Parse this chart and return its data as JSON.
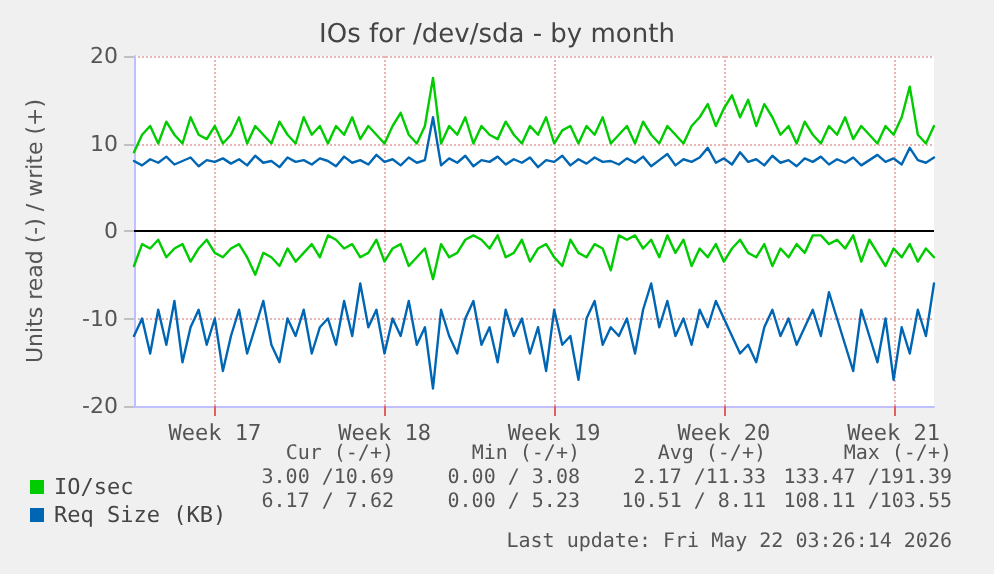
{
  "chart_data": {
    "type": "line",
    "title": "IOs for /dev/sda - by month",
    "ylabel": "Units read (-) / write (+)",
    "categories": [
      null,
      null,
      null,
      null,
      null,
      null,
      null,
      null,
      null,
      null,
      "Week 17",
      null,
      null,
      null,
      null,
      null,
      null,
      null,
      null,
      null,
      null,
      null,
      null,
      null,
      null,
      null,
      null,
      null,
      null,
      null,
      null,
      "Week 18",
      null,
      null,
      null,
      null,
      null,
      null,
      null,
      null,
      null,
      null,
      null,
      null,
      null,
      null,
      null,
      null,
      null,
      null,
      null,
      null,
      "Week 19",
      null,
      null,
      null,
      null,
      null,
      null,
      null,
      null,
      null,
      null,
      null,
      null,
      null,
      null,
      null,
      null,
      null,
      null,
      null,
      null,
      "Week 20",
      null,
      null,
      null,
      null,
      null,
      null,
      null,
      null,
      null,
      null,
      null,
      null,
      null,
      null,
      null,
      null,
      null,
      null,
      null,
      null,
      "Week 21",
      null,
      null,
      null,
      null,
      null
    ],
    "series": [
      {
        "name": "IO/sec",
        "color": "#00cc00",
        "values": [
          9,
          11,
          12,
          10,
          12.5,
          11,
          10,
          13,
          11,
          10.5,
          12,
          10,
          11,
          13,
          10,
          12,
          11,
          10,
          12.5,
          11,
          10,
          13,
          11,
          12,
          10,
          12,
          11,
          13,
          10.5,
          12,
          11,
          10,
          12,
          13.5,
          11,
          10,
          12,
          17.5,
          10,
          12,
          11,
          13,
          10,
          12,
          11,
          10.5,
          12.5,
          11,
          10,
          12,
          11,
          13,
          10,
          11.5,
          12,
          10,
          12,
          11,
          13,
          10,
          11,
          12,
          10,
          12.5,
          11,
          10,
          12,
          11,
          10,
          12,
          13,
          14.5,
          12,
          14,
          15.5,
          13,
          15,
          12,
          14.5,
          13,
          11,
          12,
          10,
          12.5,
          11,
          10,
          12,
          11,
          13,
          10.5,
          12,
          11,
          10,
          12,
          11,
          13,
          16.5,
          11,
          10,
          12
        ]
      },
      {
        "color": "#00cc00",
        "values": [
          -4,
          -1.5,
          -2,
          -1,
          -3,
          -2,
          -1.5,
          -3.5,
          -2,
          -1,
          -2.5,
          -3,
          -2,
          -1.5,
          -3,
          -5,
          -2.5,
          -3,
          -4,
          -2,
          -3.5,
          -2.5,
          -1.5,
          -3,
          -0.5,
          -1,
          -2,
          -1.5,
          -3,
          -2.5,
          -1,
          -3.5,
          -2,
          -1.5,
          -4,
          -3,
          -2,
          -5.5,
          -1.5,
          -3,
          -2.5,
          -1,
          -0.5,
          -1,
          -2,
          -0.5,
          -3,
          -2.5,
          -1,
          -3.5,
          -2,
          -1.5,
          -3,
          -4,
          -1,
          -2.5,
          -3,
          -1.5,
          -2,
          -4.5,
          -0.5,
          -1,
          -0.5,
          -2,
          -1,
          -3,
          -0.5,
          -2.5,
          -1,
          -4,
          -2,
          -3,
          -1.5,
          -3.5,
          -2,
          -1,
          -2.5,
          -3,
          -1.5,
          -4,
          -2,
          -3,
          -1.5,
          -2.5,
          -0.5,
          -0.5,
          -1.5,
          -1,
          -2,
          -0.5,
          -3.5,
          -1,
          -2.5,
          -4,
          -2,
          -3,
          -1.5,
          -3.5,
          -2,
          -3
        ]
      },
      {
        "name": "Req Size (KB)",
        "color": "#0066b3",
        "values": [
          8,
          7.5,
          8.2,
          7.8,
          8.5,
          7.6,
          8,
          8.4,
          7.4,
          8.1,
          7.9,
          8.3,
          7.7,
          8.2,
          7.5,
          8.6,
          7.8,
          8,
          7.3,
          8.4,
          7.9,
          8.1,
          7.6,
          8.3,
          8,
          7.4,
          8.5,
          7.8,
          8.1,
          7.6,
          8.7,
          7.9,
          8.2,
          7.5,
          8.4,
          7.8,
          8.1,
          13,
          7.5,
          8.3,
          7.8,
          8.6,
          7.4,
          8.1,
          7.9,
          8.5,
          7.6,
          8.2,
          7.8,
          8.4,
          7.3,
          8.1,
          7.9,
          8.6,
          7.5,
          8.2,
          7.7,
          8.4,
          7.9,
          8,
          7.6,
          8.3,
          7.8,
          8.5,
          7.4,
          8.1,
          8.8,
          7.5,
          8.2,
          7.9,
          8.4,
          9.5,
          7.8,
          8.3,
          7.6,
          9,
          7.9,
          8.2,
          7.5,
          8.6,
          7.8,
          8.1,
          7.4,
          8.3,
          7.9,
          8.5,
          7.6,
          8.2,
          7.8,
          8.4,
          7.5,
          8.1,
          8.7,
          7.9,
          8.3,
          7.6,
          9.5,
          8.1,
          7.8,
          8.4
        ]
      },
      {
        "color": "#0066b3",
        "values": [
          -12,
          -10,
          -14,
          -9,
          -13,
          -8,
          -15,
          -11,
          -9,
          -13,
          -10,
          -16,
          -12,
          -9,
          -14,
          -11,
          -8,
          -13,
          -15,
          -10,
          -12,
          -9,
          -14,
          -11,
          -10,
          -13,
          -8,
          -12,
          -6,
          -11,
          -9,
          -14,
          -10,
          -12,
          -8,
          -13,
          -11,
          -18,
          -9,
          -12,
          -14,
          -10,
          -8,
          -13,
          -11,
          -15,
          -9,
          -12,
          -10,
          -14,
          -11,
          -16,
          -9,
          -13,
          -12,
          -17,
          -10,
          -8,
          -13,
          -11,
          -12,
          -10,
          -14,
          -9,
          -6,
          -11,
          -8,
          -12,
          -10,
          -13,
          -9,
          -11,
          -8,
          -10,
          -12,
          -14,
          -13,
          -15,
          -11,
          -9,
          -12,
          -10,
          -13,
          -11,
          -9,
          -12,
          -7,
          -10,
          -13,
          -16,
          -9,
          -12,
          -15,
          -10,
          -17,
          -11,
          -14,
          -9,
          -12,
          -6
        ]
      }
    ],
    "ylim": [
      -20,
      20
    ],
    "yticks": [
      -20,
      -10,
      0,
      10,
      20
    ],
    "ref_lines": [
      {
        "axis": "y",
        "value": 0,
        "color": "#000000"
      }
    ],
    "grid": true,
    "legend": "bottom left",
    "marker": "none",
    "line_style": "solid",
    "annotations": [
      "Cur (-/+)",
      "Min (-/+)",
      "Avg (-/+)",
      "Max (-/+)",
      "3.00 /10.69",
      "0.00 / 3.08",
      "2.17 /11.33",
      "133.47 /191.39",
      "6.17 / 7.62",
      "0.00 / 5.23",
      "10.51 / 8.11",
      "108.11 /103.55",
      "Last update: Fri May 22 03:26:14 2026"
    ]
  }
}
